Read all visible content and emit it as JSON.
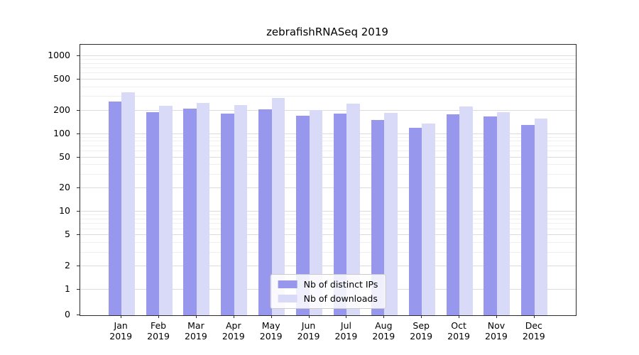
{
  "chart_data": {
    "type": "bar",
    "title": "zebrafishRNASeq 2019",
    "categories": [
      "Jan",
      "Feb",
      "Mar",
      "Apr",
      "May",
      "Jun",
      "Jul",
      "Aug",
      "Sep",
      "Oct",
      "Nov",
      "Dec"
    ],
    "year": "2019",
    "series": [
      {
        "name": "Nb of distinct IPs",
        "color": "#9797ee",
        "values": [
          258,
          190,
          213,
          182,
          206,
          172,
          182,
          152,
          119,
          177,
          169,
          131
        ]
      },
      {
        "name": "Nb of downloads",
        "color": "#d9d9f8",
        "values": [
          345,
          228,
          252,
          233,
          288,
          204,
          243,
          187,
          137,
          227,
          192,
          156
        ]
      }
    ],
    "yscale": "symlog",
    "yticks": [
      0,
      1,
      2,
      5,
      10,
      20,
      50,
      100,
      200,
      500,
      1000
    ],
    "ylim": [
      0,
      1400
    ],
    "grid": true,
    "legend_position": "lower center"
  }
}
